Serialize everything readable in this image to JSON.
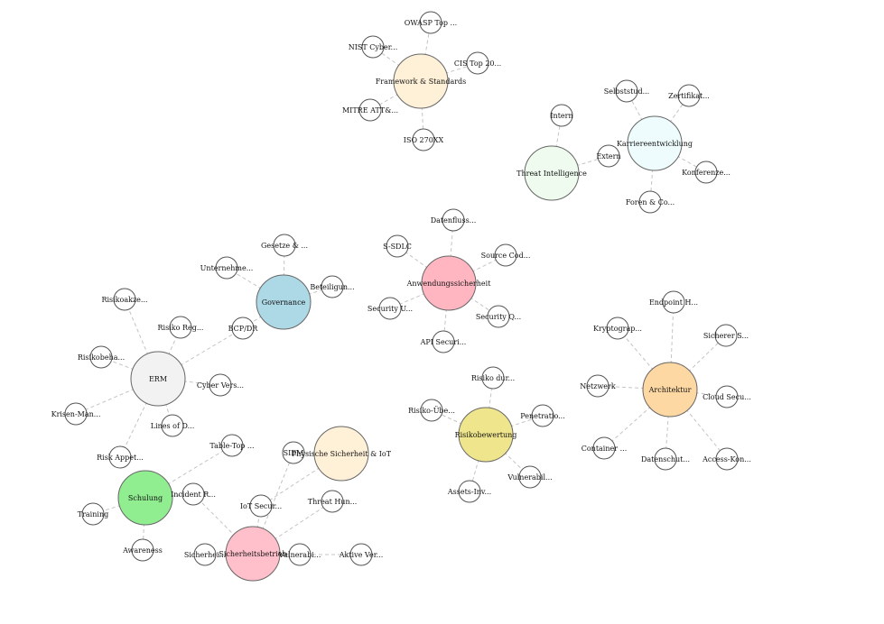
{
  "colors": {
    "white": "#ffffff",
    "framework": "#fff0d8",
    "threat_intel": "#eefbee",
    "career": "#eefcfd",
    "appsec": "#ffb6c1",
    "governance": "#add8e6",
    "erm": "#f2f2f2",
    "architecture": "#fdd8a3",
    "risk": "#efe58c",
    "training": "#90ee90",
    "physical": "#fff0d8",
    "secops": "#ffc0cb"
  },
  "nodes": [
    {
      "id": "n_owasp",
      "label": "OWASP Top ...",
      "color": "white",
      "hub": false
    },
    {
      "id": "n_nist",
      "label": "NIST Cyber...",
      "color": "white",
      "hub": false
    },
    {
      "id": "n_cis",
      "label": "CIS Top 20...",
      "color": "white",
      "hub": false
    },
    {
      "id": "n_framework",
      "label": "Framework & Standards",
      "color": "framework",
      "hub": true
    },
    {
      "id": "n_mitre",
      "label": "MITRE ATT&...",
      "color": "white",
      "hub": false
    },
    {
      "id": "n_iso",
      "label": "ISO 270XX",
      "color": "white",
      "hub": false
    },
    {
      "id": "n_intern",
      "label": "Intern",
      "color": "white",
      "hub": false
    },
    {
      "id": "n_extern",
      "label": "Extern",
      "color": "white",
      "hub": false
    },
    {
      "id": "n_threat",
      "label": "Threat Intelligence",
      "color": "threat_intel",
      "hub": true
    },
    {
      "id": "n_career",
      "label": "Karriereentwicklung",
      "color": "career",
      "hub": true
    },
    {
      "id": "n_selbst",
      "label": "Selbststud...",
      "color": "white",
      "hub": false
    },
    {
      "id": "n_zert",
      "label": "Zertifikat...",
      "color": "white",
      "hub": false
    },
    {
      "id": "n_konf",
      "label": "Konferenze...",
      "color": "white",
      "hub": false
    },
    {
      "id": "n_foren",
      "label": "Foren & Co...",
      "color": "white",
      "hub": false
    },
    {
      "id": "n_datenfluss",
      "label": "Datenfluss...",
      "color": "white",
      "hub": false
    },
    {
      "id": "n_ssdlc",
      "label": "S-SDLC",
      "color": "white",
      "hub": false
    },
    {
      "id": "n_sourcecode",
      "label": "Source Cod...",
      "color": "white",
      "hub": false
    },
    {
      "id": "n_appsec",
      "label": "Anwendungssicherheit",
      "color": "appsec",
      "hub": true
    },
    {
      "id": "n_secu",
      "label": "Security U...",
      "color": "white",
      "hub": false
    },
    {
      "id": "n_secq",
      "label": "Security Q...",
      "color": "white",
      "hub": false
    },
    {
      "id": "n_api",
      "label": "API Securi...",
      "color": "white",
      "hub": false
    },
    {
      "id": "n_gesetze",
      "label": "Gesetze & ...",
      "color": "white",
      "hub": false
    },
    {
      "id": "n_unternehme",
      "label": "Unternehme...",
      "color": "white",
      "hub": false
    },
    {
      "id": "n_beteilig",
      "label": "Beteiligun...",
      "color": "white",
      "hub": false
    },
    {
      "id": "n_governance",
      "label": "Governance",
      "color": "governance",
      "hub": true
    },
    {
      "id": "n_bcpdr",
      "label": "BCP/DR",
      "color": "white",
      "hub": false
    },
    {
      "id": "n_risikoakz",
      "label": "Risikoakze...",
      "color": "white",
      "hub": false
    },
    {
      "id": "n_risikoreg",
      "label": "Risiko Reg...",
      "color": "white",
      "hub": false
    },
    {
      "id": "n_risikobeha",
      "label": "Risikobeha...",
      "color": "white",
      "hub": false
    },
    {
      "id": "n_erm",
      "label": "ERM",
      "color": "erm",
      "hub": true
    },
    {
      "id": "n_cyberver",
      "label": "Cyber Vers...",
      "color": "white",
      "hub": false
    },
    {
      "id": "n_krisen",
      "label": "Krisen-Man...",
      "color": "white",
      "hub": false
    },
    {
      "id": "n_lines",
      "label": "Lines of D...",
      "color": "white",
      "hub": false
    },
    {
      "id": "n_riskapp",
      "label": "Risk Appet...",
      "color": "white",
      "hub": false
    },
    {
      "id": "n_endpoint",
      "label": "Endpoint H...",
      "color": "white",
      "hub": false
    },
    {
      "id": "n_krypto",
      "label": "Kryptograp...",
      "color": "white",
      "hub": false
    },
    {
      "id": "n_sicherers",
      "label": "Sicherer S...",
      "color": "white",
      "hub": false
    },
    {
      "id": "n_netzwerk",
      "label": "Netzwerk",
      "color": "white",
      "hub": false
    },
    {
      "id": "n_architektur",
      "label": "Architektur",
      "color": "architecture",
      "hub": true
    },
    {
      "id": "n_cloud",
      "label": "Cloud Secu...",
      "color": "white",
      "hub": false
    },
    {
      "id": "n_container",
      "label": "Container ...",
      "color": "white",
      "hub": false
    },
    {
      "id": "n_datenschut",
      "label": "Datenschut...",
      "color": "white",
      "hub": false
    },
    {
      "id": "n_access",
      "label": "Access-Kon...",
      "color": "white",
      "hub": false
    },
    {
      "id": "n_risikodur",
      "label": "Risiko dur...",
      "color": "white",
      "hub": false
    },
    {
      "id": "n_risikoube",
      "label": "Risiko-Übe...",
      "color": "white",
      "hub": false
    },
    {
      "id": "n_penetratio",
      "label": "Penetratio...",
      "color": "white",
      "hub": false
    },
    {
      "id": "n_risikobew",
      "label": "Risikobewertung",
      "color": "risk",
      "hub": true
    },
    {
      "id": "n_vulnerabil",
      "label": "Vulnerabil...",
      "color": "white",
      "hub": false
    },
    {
      "id": "n_assets",
      "label": "Assets-Inv...",
      "color": "white",
      "hub": false
    },
    {
      "id": "n_tabletop",
      "label": "Table-Top ...",
      "color": "white",
      "hub": false
    },
    {
      "id": "n_schulung",
      "label": "Schulung",
      "color": "training",
      "hub": true
    },
    {
      "id": "n_incident",
      "label": "Incident R...",
      "color": "white",
      "hub": false
    },
    {
      "id": "n_training",
      "label": "Training",
      "color": "white",
      "hub": false
    },
    {
      "id": "n_awareness",
      "label": "Awareness",
      "color": "white",
      "hub": false
    },
    {
      "id": "n_siem",
      "label": "SIEM",
      "color": "white",
      "hub": false
    },
    {
      "id": "n_physical",
      "label": "Physische Sicherheit & IoT",
      "color": "physical",
      "hub": true
    },
    {
      "id": "n_iotsec",
      "label": "IoT Secur...",
      "color": "white",
      "hub": false
    },
    {
      "id": "n_threathun",
      "label": "Threat Hun...",
      "color": "white",
      "hub": false
    },
    {
      "id": "n_sicherhei",
      "label": "Sicherhei...",
      "color": "white",
      "hub": false
    },
    {
      "id": "n_secops",
      "label": "Sicherheitsbetrieb",
      "color": "secops",
      "hub": true
    },
    {
      "id": "n_vulnerab2",
      "label": "Vulnerabi...",
      "color": "white",
      "hub": false
    },
    {
      "id": "n_aktive",
      "label": "Aktive Ver...",
      "color": "white",
      "hub": false
    }
  ],
  "edges": [
    [
      "n_framework",
      "n_owasp"
    ],
    [
      "n_framework",
      "n_nist"
    ],
    [
      "n_framework",
      "n_cis"
    ],
    [
      "n_framework",
      "n_mitre"
    ],
    [
      "n_framework",
      "n_iso"
    ],
    [
      "n_threat",
      "n_intern"
    ],
    [
      "n_threat",
      "n_extern"
    ],
    [
      "n_career",
      "n_selbst"
    ],
    [
      "n_career",
      "n_zert"
    ],
    [
      "n_career",
      "n_konf"
    ],
    [
      "n_career",
      "n_foren"
    ],
    [
      "n_appsec",
      "n_datenfluss"
    ],
    [
      "n_appsec",
      "n_ssdlc"
    ],
    [
      "n_appsec",
      "n_sourcecode"
    ],
    [
      "n_appsec",
      "n_secu"
    ],
    [
      "n_appsec",
      "n_secq"
    ],
    [
      "n_appsec",
      "n_api"
    ],
    [
      "n_governance",
      "n_gesetze"
    ],
    [
      "n_governance",
      "n_unternehme"
    ],
    [
      "n_governance",
      "n_beteilig"
    ],
    [
      "n_governance",
      "n_bcpdr"
    ],
    [
      "n_bcpdr",
      "n_erm"
    ],
    [
      "n_erm",
      "n_risikoakz"
    ],
    [
      "n_erm",
      "n_risikoreg"
    ],
    [
      "n_erm",
      "n_risikobeha"
    ],
    [
      "n_erm",
      "n_cyberver"
    ],
    [
      "n_erm",
      "n_krisen"
    ],
    [
      "n_erm",
      "n_lines"
    ],
    [
      "n_erm",
      "n_riskapp"
    ],
    [
      "n_architektur",
      "n_endpoint"
    ],
    [
      "n_architektur",
      "n_krypto"
    ],
    [
      "n_architektur",
      "n_sicherers"
    ],
    [
      "n_architektur",
      "n_netzwerk"
    ],
    [
      "n_architektur",
      "n_cloud"
    ],
    [
      "n_architektur",
      "n_container"
    ],
    [
      "n_architektur",
      "n_datenschut"
    ],
    [
      "n_architektur",
      "n_access"
    ],
    [
      "n_risikobew",
      "n_risikodur"
    ],
    [
      "n_risikobew",
      "n_risikoube"
    ],
    [
      "n_risikobew",
      "n_penetratio"
    ],
    [
      "n_risikobew",
      "n_vulnerabil"
    ],
    [
      "n_risikobew",
      "n_assets"
    ],
    [
      "n_schulung",
      "n_tabletop"
    ],
    [
      "n_schulung",
      "n_incident"
    ],
    [
      "n_schulung",
      "n_training"
    ],
    [
      "n_schulung",
      "n_awareness"
    ],
    [
      "n_incident",
      "n_secops"
    ],
    [
      "n_physical",
      "n_siem"
    ],
    [
      "n_physical",
      "n_iotsec"
    ],
    [
      "n_secops",
      "n_siem"
    ],
    [
      "n_secops",
      "n_iotsec"
    ],
    [
      "n_secops",
      "n_threathun"
    ],
    [
      "n_secops",
      "n_sicherhei"
    ],
    [
      "n_secops",
      "n_vulnerab2"
    ],
    [
      "n_vulnerab2",
      "n_aktive"
    ]
  ]
}
